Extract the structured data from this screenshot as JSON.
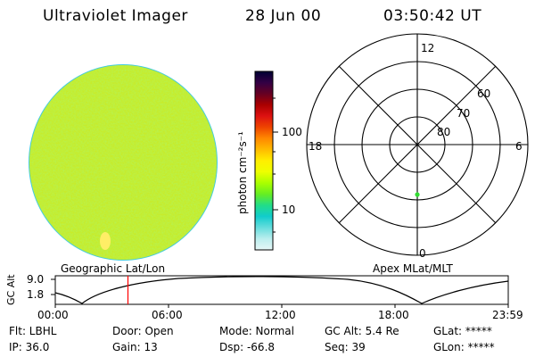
{
  "header": {
    "title": "Ultraviolet Imager",
    "date": "28 Jun 00",
    "time": "03:50:42 UT"
  },
  "image_panel": {
    "caption": "Geographic Lat/Lon"
  },
  "colorbar": {
    "unit_label": "photon cm⁻²s⁻¹",
    "ticks": [
      {
        "label": "100",
        "value": 100
      },
      {
        "label": "10",
        "value": 10
      }
    ],
    "colors": [
      "#000033",
      "#330044",
      "#660022",
      "#aa0000",
      "#dd1111",
      "#ee4400",
      "#ff8800",
      "#ffbb00",
      "#ffee00",
      "#eeff00",
      "#aaff00",
      "#66ee22",
      "#22dd88",
      "#11cccc",
      "#66dddd",
      "#bbeeee",
      "#e6f7f7"
    ]
  },
  "polar_plot": {
    "caption": "Apex MLat/MLT",
    "mlt_labels": {
      "top": "12",
      "bottom": "0",
      "left": "18",
      "right": "6"
    },
    "lat_labels": [
      "60",
      "70",
      "80"
    ],
    "point_color": "#33dd33"
  },
  "altitude_strip": {
    "axis_label": "GC Alt",
    "y_ticks": [
      "9.0",
      "1.8"
    ],
    "x_ticks": [
      "00:00",
      "06:00",
      "12:00",
      "18:00",
      "23:59"
    ],
    "marker_time_hours": 3.85,
    "marker_color": "#ff0000"
  },
  "info": {
    "flt": "Flt: LBHL",
    "door": "Door: Open",
    "mode": "Mode: Normal",
    "gc_alt": "GC Alt: 5.4 Re",
    "glat": "GLat: *****",
    "ip": "IP: 36.0",
    "gain": "Gain: 13",
    "dsp": "Dsp:  -66.8",
    "seq": "Seq: 39",
    "glon": "GLon: *****"
  }
}
